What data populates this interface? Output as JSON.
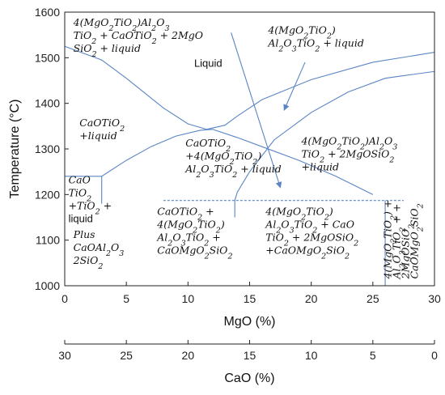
{
  "chart_data": {
    "type": "line",
    "xlabel": "MgO (%)",
    "ylabel": "Temperature (°C)",
    "xlim": [
      0,
      30
    ],
    "ylim": [
      1000,
      1600
    ],
    "x_ticks": [
      0,
      5,
      10,
      15,
      20,
      25,
      30
    ],
    "y_ticks": [
      1000,
      1100,
      1200,
      1300,
      1400,
      1500,
      1600
    ],
    "secondary_x": {
      "label": "CaO (%)",
      "ticks": [
        30,
        25,
        20,
        15,
        10,
        5,
        0
      ]
    },
    "series": [
      {
        "x": [
          0,
          3,
          5,
          8,
          10,
          11.5
        ],
        "y": [
          1525,
          1495,
          1455,
          1390,
          1355,
          1343
        ]
      },
      {
        "x": [
          11.5,
          13,
          14,
          16,
          20,
          25,
          30
        ],
        "y": [
          1343,
          1352,
          1372,
          1408,
          1452,
          1490,
          1512
        ]
      },
      {
        "x": [
          3,
          5,
          7,
          9,
          11,
          12
        ],
        "y": [
          1240,
          1275,
          1305,
          1328,
          1341,
          1343
        ]
      },
      {
        "x": [
          12,
          14,
          16,
          19,
          22,
          25
        ],
        "y": [
          1343,
          1325,
          1305,
          1275,
          1240,
          1200
        ]
      },
      {
        "x": [
          13.8,
          14,
          15,
          17,
          20,
          23,
          26,
          30
        ],
        "y": [
          1187,
          1205,
          1250,
          1320,
          1380,
          1425,
          1455,
          1470
        ]
      },
      {
        "x": [
          0,
          3,
          3
        ],
        "y": [
          1240,
          1240,
          1180
        ]
      },
      {
        "x": [
          8,
          27.5
        ],
        "y": [
          1187,
          1187
        ]
      },
      {
        "x": [
          13.8,
          13.8
        ],
        "y": [
          1187,
          1150
        ]
      },
      {
        "x": [
          26,
          26
        ],
        "y": [
          1187,
          1000
        ]
      },
      {
        "x": [
          13.5,
          17.5
        ],
        "y": [
          1555,
          1215
        ]
      },
      {
        "x": [
          19.5,
          17.8
        ],
        "y": [
          1490,
          1385
        ]
      }
    ],
    "annotations": [
      {
        "x": 0.7,
        "y": 1570,
        "lines": [
          "4(MgO2TiO2)Al2O3",
          "TiO2 + CaOTiO2 + 2MgO",
          "SiO2 + liquid"
        ]
      },
      {
        "x": 16.5,
        "y": 1553,
        "lines": [
          "4(MgO2TiO2)",
          "Al2O3TiO2 + liquid"
        ]
      },
      {
        "x": 10.5,
        "y": 1480,
        "lines": [
          "Liquid"
        ]
      },
      {
        "x": 1.2,
        "y": 1350,
        "lines": [
          "CaOTiO2",
          "+liquid"
        ]
      },
      {
        "x": 9.8,
        "y": 1305,
        "lines": [
          "CaOTiO2",
          "+4(MgO2TiO2)",
          "Al2O3TiO2 + liquid"
        ]
      },
      {
        "x": 19.2,
        "y": 1310,
        "lines": [
          "4(MgO2TiO2)Al2O3",
          "TiO2 + 2MgOSiO2",
          "+liquid"
        ]
      },
      {
        "x": 0.3,
        "y": 1225,
        "lines": [
          "CaO",
          "TiO2",
          "+TiO2 +",
          "liquid"
        ]
      },
      {
        "x": 0.7,
        "y": 1105,
        "lines": [
          "Plus",
          "CaOAl2O3",
          "2SiO2"
        ]
      },
      {
        "x": 7.5,
        "y": 1155,
        "lines": [
          "CaOTiO2 +",
          "4(MgO2TiO2)",
          "Al2O3TiO2 +",
          "CaOMgO2SiO2"
        ]
      },
      {
        "x": 16.3,
        "y": 1155,
        "lines": [
          "4(MgO2TiO2)",
          "Al2O3TiO2 + CaO",
          "TiO2 + 2MgOSiO2",
          "+CaOMgO2SiO2"
        ]
      },
      {
        "x": 26.5,
        "y": 1015,
        "lines": [
          "4(MgO2TiO2) +",
          "Al2O3TiO2 + +",
          "2MgOSiO2",
          "CaOMgO2SiO2"
        ],
        "rotation": -90
      }
    ]
  }
}
